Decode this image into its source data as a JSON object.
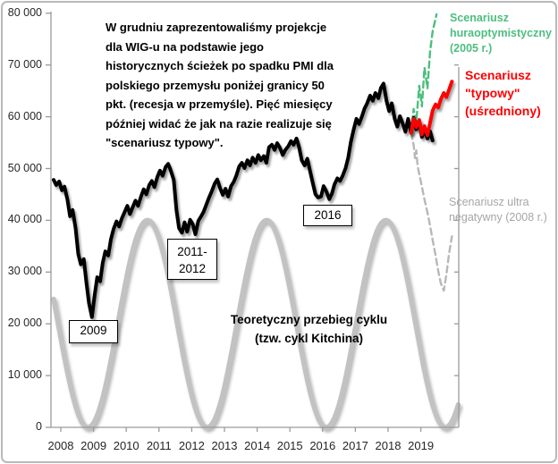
{
  "annotation": {
    "text": "W grudniu zaprezentowaliśmy projekcje\ndla WIG-u na podstawie jego\nhistorycznych ścieżek po spadku PMI dla\npolskiego przemysłu poniżej granicy 50\npkt. (recesja w przemyśle). Pięć miesięcy\npóźniej widać że jak na razie realizuje się\n\"scenariusz typowy\"."
  },
  "callouts": {
    "y2009": "2009",
    "y2011_2012": "2011-\n2012",
    "y2016": "2016"
  },
  "cycle_label": {
    "text": "Teoretyczny przebieg cyklu\n(tzw. cykl Kitchina)"
  },
  "scenario_labels": {
    "optimistic": {
      "text": "Scenariusz\nhuraoptymistyczny\n(2005 r.)",
      "color": "#4dbe7e"
    },
    "typical": {
      "text": "Scenariusz\n\"typowy\"\n(uśredniony)",
      "color": "#ff0000"
    },
    "negative": {
      "text": "Scenariusz ultra\nnegatywny (2008 r.)",
      "color": "#a6a6a6"
    }
  },
  "chart_data": {
    "type": "line",
    "title": "",
    "xlabel": "",
    "ylabel": "",
    "grid": false,
    "legend_position": "labels-on-chart",
    "x_axis": {
      "tick_years": [
        2008,
        2009,
        2010,
        2011,
        2012,
        2013,
        2014,
        2015,
        2016,
        2017,
        2018,
        2019
      ],
      "range_years": [
        2008,
        2020.45
      ]
    },
    "y_axis": {
      "range": [
        0,
        80000
      ],
      "ticks": [
        {
          "value": 0,
          "label": "0"
        },
        {
          "value": 10000,
          "label": "10 000"
        },
        {
          "value": 20000,
          "label": "20 000"
        },
        {
          "value": 30000,
          "label": "30 000"
        },
        {
          "value": 40000,
          "label": "40 000"
        },
        {
          "value": 50000,
          "label": "50 000"
        },
        {
          "value": 60000,
          "label": "60 000"
        },
        {
          "value": 70000,
          "label": "70 000"
        },
        {
          "value": 80000,
          "label": "80 000"
        }
      ]
    },
    "secondary_y_axis": {
      "shown": true,
      "tick_values": [
        10000,
        20000,
        30000,
        40000,
        50000,
        60000,
        70000
      ]
    },
    "kitchin_cycle": {
      "name": "Teoretyczny przebieg cyklu (tzw. cykl Kitchina)",
      "color": "#c2c2c2",
      "width": 5.5,
      "style": "solid",
      "midline": 20000,
      "amplitude": 20000,
      "first_min_year": 2009.05,
      "period_years": 3.64,
      "draw_range_years": [
        2008,
        2020.38
      ],
      "peak_value": 40000,
      "trough_value": 0
    },
    "series": [
      {
        "name": "Scenariusz ultra negatywny (2008 r.)",
        "color": "#b8b8b8",
        "style": "dashed",
        "width": 2.4,
        "points": [
          [
            2018.92,
            56900
          ],
          [
            2019.0,
            54500
          ],
          [
            2019.04,
            52000
          ],
          [
            2019.08,
            53500
          ],
          [
            2019.12,
            50500
          ],
          [
            2019.17,
            49000
          ],
          [
            2019.25,
            46500
          ],
          [
            2019.33,
            44000
          ],
          [
            2019.42,
            41500
          ],
          [
            2019.5,
            39000
          ],
          [
            2019.58,
            36200
          ],
          [
            2019.67,
            33200
          ],
          [
            2019.75,
            30200
          ],
          [
            2019.83,
            27800
          ],
          [
            2019.92,
            26400
          ],
          [
            2020.0,
            29500
          ],
          [
            2020.08,
            33500
          ],
          [
            2020.17,
            36900
          ]
        ]
      },
      {
        "name": "Scenariusz huraoptymistyczny (2005 r.)",
        "color": "#4dbe7e",
        "style": "dashed",
        "width": 2.4,
        "points": [
          [
            2018.92,
            56900
          ],
          [
            2019.0,
            61500
          ],
          [
            2019.08,
            59000
          ],
          [
            2019.17,
            66000
          ],
          [
            2019.25,
            62000
          ],
          [
            2019.33,
            69500
          ],
          [
            2019.42,
            65500
          ],
          [
            2019.5,
            72500
          ],
          [
            2019.58,
            76500
          ],
          [
            2019.7,
            79800
          ]
        ]
      },
      {
        "name": "WIG",
        "color": "#000000",
        "style": "solid",
        "width": 4,
        "points": [
          [
            2008.0,
            47800
          ],
          [
            2008.08,
            46800
          ],
          [
            2008.17,
            47500
          ],
          [
            2008.25,
            45800
          ],
          [
            2008.33,
            46500
          ],
          [
            2008.42,
            44000
          ],
          [
            2008.5,
            40800
          ],
          [
            2008.58,
            42000
          ],
          [
            2008.67,
            38500
          ],
          [
            2008.75,
            33500
          ],
          [
            2008.83,
            31500
          ],
          [
            2008.92,
            32500
          ],
          [
            2009.0,
            28000
          ],
          [
            2009.08,
            24000
          ],
          [
            2009.17,
            21300
          ],
          [
            2009.25,
            25500
          ],
          [
            2009.33,
            29000
          ],
          [
            2009.42,
            28200
          ],
          [
            2009.5,
            31800
          ],
          [
            2009.58,
            34000
          ],
          [
            2009.67,
            33200
          ],
          [
            2009.75,
            36300
          ],
          [
            2009.83,
            38300
          ],
          [
            2009.92,
            39800
          ],
          [
            2010.0,
            38800
          ],
          [
            2010.08,
            40300
          ],
          [
            2010.17,
            41600
          ],
          [
            2010.25,
            42800
          ],
          [
            2010.33,
            41200
          ],
          [
            2010.42,
            42600
          ],
          [
            2010.5,
            43800
          ],
          [
            2010.58,
            42800
          ],
          [
            2010.67,
            44600
          ],
          [
            2010.75,
            46000
          ],
          [
            2010.83,
            45000
          ],
          [
            2010.92,
            46800
          ],
          [
            2011.0,
            47600
          ],
          [
            2011.08,
            46400
          ],
          [
            2011.17,
            48400
          ],
          [
            2011.25,
            49600
          ],
          [
            2011.33,
            48600
          ],
          [
            2011.42,
            50300
          ],
          [
            2011.5,
            50900
          ],
          [
            2011.58,
            49600
          ],
          [
            2011.67,
            47800
          ],
          [
            2011.75,
            42000
          ],
          [
            2011.83,
            38500
          ],
          [
            2011.92,
            37600
          ],
          [
            2012.0,
            39600
          ],
          [
            2012.08,
            37800
          ],
          [
            2012.17,
            40100
          ],
          [
            2012.25,
            39200
          ],
          [
            2012.33,
            37300
          ],
          [
            2012.42,
            39900
          ],
          [
            2012.5,
            40700
          ],
          [
            2012.58,
            41600
          ],
          [
            2012.67,
            43100
          ],
          [
            2012.75,
            44400
          ],
          [
            2012.83,
            45600
          ],
          [
            2012.92,
            47100
          ],
          [
            2013.0,
            47900
          ],
          [
            2013.08,
            46300
          ],
          [
            2013.17,
            44900
          ],
          [
            2013.25,
            46100
          ],
          [
            2013.33,
            44600
          ],
          [
            2013.42,
            46600
          ],
          [
            2013.5,
            47400
          ],
          [
            2013.58,
            48600
          ],
          [
            2013.67,
            50400
          ],
          [
            2013.75,
            51100
          ],
          [
            2013.83,
            50100
          ],
          [
            2013.92,
            51600
          ],
          [
            2014.0,
            50600
          ],
          [
            2014.08,
            52100
          ],
          [
            2014.17,
            51100
          ],
          [
            2014.25,
            52600
          ],
          [
            2014.33,
            51600
          ],
          [
            2014.42,
            52400
          ],
          [
            2014.5,
            51100
          ],
          [
            2014.58,
            54100
          ],
          [
            2014.67,
            54600
          ],
          [
            2014.75,
            53600
          ],
          [
            2014.83,
            54900
          ],
          [
            2014.92,
            53900
          ],
          [
            2015.0,
            52600
          ],
          [
            2015.08,
            53600
          ],
          [
            2015.17,
            54300
          ],
          [
            2015.25,
            55300
          ],
          [
            2015.33,
            54600
          ],
          [
            2015.42,
            55800
          ],
          [
            2015.5,
            54100
          ],
          [
            2015.58,
            51600
          ],
          [
            2015.67,
            50600
          ],
          [
            2015.75,
            51900
          ],
          [
            2015.83,
            49600
          ],
          [
            2015.92,
            47100
          ],
          [
            2016.0,
            45000
          ],
          [
            2016.08,
            44400
          ],
          [
            2016.17,
            44600
          ],
          [
            2016.25,
            46600
          ],
          [
            2016.33,
            45600
          ],
          [
            2016.42,
            44100
          ],
          [
            2016.5,
            45100
          ],
          [
            2016.58,
            46900
          ],
          [
            2016.67,
            48100
          ],
          [
            2016.75,
            47600
          ],
          [
            2016.83,
            48600
          ],
          [
            2016.92,
            50100
          ],
          [
            2017.0,
            52100
          ],
          [
            2017.08,
            55100
          ],
          [
            2017.17,
            57600
          ],
          [
            2017.25,
            59600
          ],
          [
            2017.33,
            58600
          ],
          [
            2017.42,
            60100
          ],
          [
            2017.5,
            61600
          ],
          [
            2017.58,
            62600
          ],
          [
            2017.67,
            64100
          ],
          [
            2017.75,
            63100
          ],
          [
            2017.83,
            64600
          ],
          [
            2017.92,
            63600
          ],
          [
            2018.0,
            65600
          ],
          [
            2018.08,
            66400
          ],
          [
            2018.17,
            63100
          ],
          [
            2018.25,
            61100
          ],
          [
            2018.33,
            62600
          ],
          [
            2018.42,
            59600
          ],
          [
            2018.5,
            58100
          ],
          [
            2018.58,
            60100
          ],
          [
            2018.67,
            58600
          ],
          [
            2018.75,
            57100
          ],
          [
            2018.83,
            59600
          ],
          [
            2018.92,
            56900
          ],
          [
            2019.0,
            59800
          ],
          [
            2019.08,
            57600
          ],
          [
            2019.17,
            59000
          ],
          [
            2019.25,
            56100
          ],
          [
            2019.33,
            57600
          ],
          [
            2019.42,
            55800
          ],
          [
            2019.5,
            57200
          ],
          [
            2019.58,
            55400
          ]
        ]
      },
      {
        "name": "Scenariusz \"typowy\" (uśredniony)",
        "color": "#ff0000",
        "style": "solid",
        "width": 4,
        "points": [
          [
            2018.92,
            56900
          ],
          [
            2019.0,
            59600
          ],
          [
            2019.08,
            58000
          ],
          [
            2019.17,
            59400
          ],
          [
            2019.25,
            56600
          ],
          [
            2019.33,
            58200
          ],
          [
            2019.42,
            56400
          ],
          [
            2019.5,
            58800
          ],
          [
            2019.58,
            61200
          ],
          [
            2019.67,
            62400
          ],
          [
            2019.75,
            61800
          ],
          [
            2019.83,
            63400
          ],
          [
            2019.92,
            64600
          ],
          [
            2020.0,
            63800
          ],
          [
            2020.08,
            65200
          ],
          [
            2020.17,
            66800
          ]
        ]
      }
    ],
    "projection_start": {
      "year": 2018.92,
      "note_month": "grudzień 2018"
    }
  }
}
